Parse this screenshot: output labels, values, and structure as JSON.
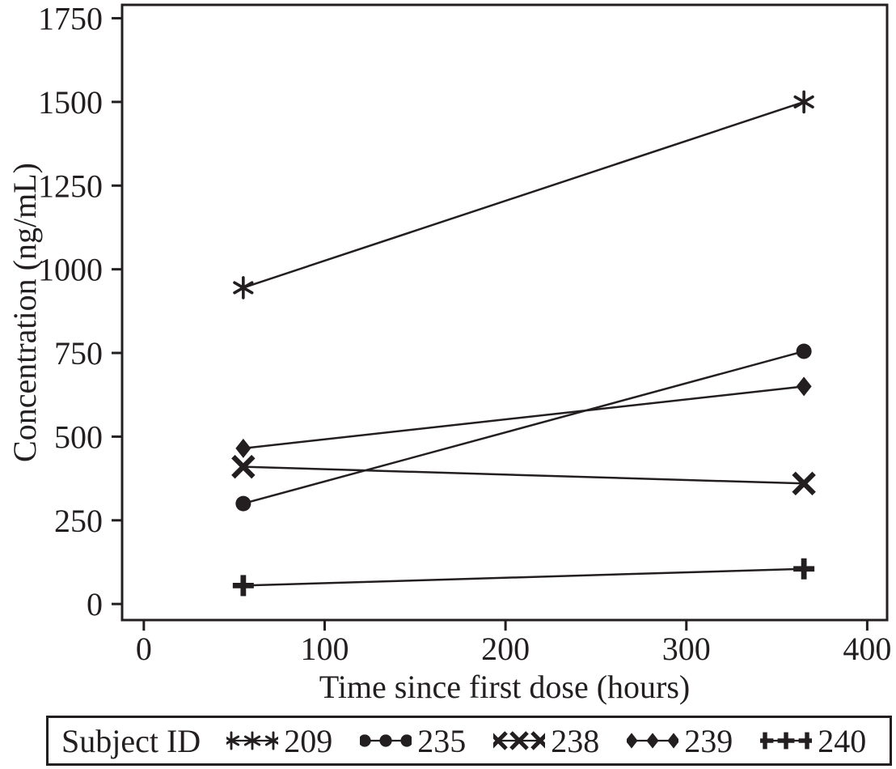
{
  "figure": {
    "background": "#ffffff",
    "ink_color": "#231f20"
  },
  "chart_data": {
    "type": "line",
    "title": "",
    "xlabel": "Time since first dose (hours)",
    "ylabel": "Concentration (ng/mL)",
    "legend_title": "Subject ID",
    "legend_position": "bottom",
    "grid": false,
    "xlim": [
      -12,
      411
    ],
    "ylim": [
      -48,
      1790
    ],
    "x_ticks": [
      0,
      100,
      200,
      300,
      400
    ],
    "y_ticks": [
      0,
      250,
      500,
      750,
      1000,
      1250,
      1500,
      1750
    ],
    "axis_color": "#231f20",
    "series": [
      {
        "name": "209",
        "marker": "asterisk",
        "x": [
          55,
          365
        ],
        "y": [
          945,
          1500
        ]
      },
      {
        "name": "235",
        "marker": "circle",
        "x": [
          55,
          365
        ],
        "y": [
          300,
          755
        ]
      },
      {
        "name": "238",
        "marker": "x",
        "x": [
          55,
          365
        ],
        "y": [
          410,
          360
        ]
      },
      {
        "name": "239",
        "marker": "diamond",
        "x": [
          55,
          365
        ],
        "y": [
          465,
          650
        ]
      },
      {
        "name": "240",
        "marker": "plus",
        "x": [
          55,
          365
        ],
        "y": [
          55,
          105
        ]
      }
    ]
  }
}
